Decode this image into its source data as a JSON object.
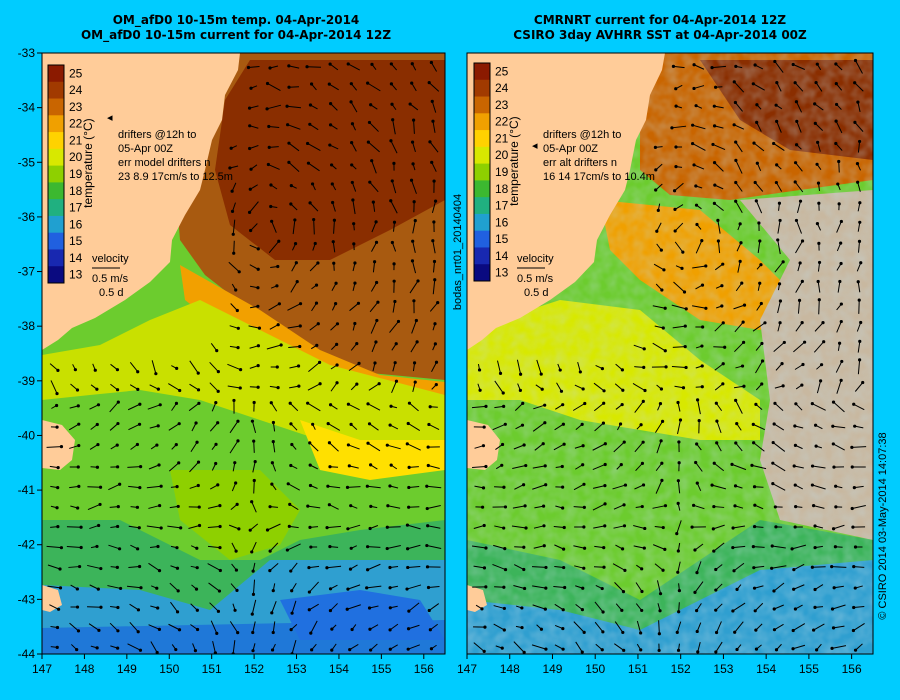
{
  "watermark": "bodas_nrt01_20140404",
  "copyright": "© CSIRO 2014   03-May-2014 14:07:38",
  "colorbar": {
    "label": "temperature (°C)",
    "ticks": [
      25,
      24,
      23,
      22,
      21,
      20,
      19,
      18,
      17,
      16,
      15,
      14,
      13
    ],
    "colors": [
      "#8b1a00",
      "#a13a00",
      "#c96500",
      "#f0a000",
      "#ffd200",
      "#d8e800",
      "#8ed000",
      "#3cb830",
      "#20b080",
      "#20a0d0",
      "#2060e0",
      "#1828b0",
      "#0a0a80"
    ]
  },
  "colors": {
    "background": "#00ccff",
    "land": "#ffcc99",
    "nodata": "#c8b8a0",
    "arrow": "#000000",
    "drifter": "#ff00ff"
  },
  "chart_data": [
    {
      "type": "heatmap",
      "title": "OM_afD0 10-15m temp. 04-Apr-2014",
      "subtitle": "OM_afD0 10-15m current for 04-Apr-2014 12Z",
      "xlim": [
        147,
        156.5
      ],
      "ylim": [
        -44,
        -33
      ],
      "xticks": [
        147,
        148,
        149,
        150,
        151,
        152,
        153,
        154,
        155,
        156
      ],
      "yticks": [
        -33,
        -34,
        -35,
        -36,
        -37,
        -38,
        -39,
        -40,
        -41,
        -42,
        -43,
        -44
      ],
      "legend": [
        "drifters @12h to",
        "05-Apr 00Z",
        "err model drifters n",
        "23    8.9      17cm/s  to 12.5m"
      ],
      "velocity_key": [
        "velocity",
        "0.5 m/s",
        "0.5 d"
      ],
      "colorbar_label": "temperature (°C)",
      "xlabel": "",
      "ylabel": ""
    },
    {
      "type": "heatmap",
      "title": "CMRNRT current for 04-Apr-2014 12Z",
      "subtitle": "CSIRO 3day AVHRR SST at 04-Apr-2014 00Z",
      "xlim": [
        147,
        156.5
      ],
      "ylim": [
        -44,
        -33
      ],
      "xticks": [
        147,
        148,
        149,
        150,
        151,
        152,
        153,
        154,
        155,
        156
      ],
      "yticks": [
        -33,
        -34,
        -35,
        -36,
        -37,
        -38,
        -39,
        -40,
        -41,
        -42,
        -43,
        -44
      ],
      "legend": [
        "drifters @12h to",
        "05-Apr 00Z",
        "err alt drifters n",
        "16 14 17cm/s  to 10.4m"
      ],
      "velocity_key": [
        "velocity",
        "0.5 m/s",
        "0.5 d"
      ],
      "colorbar_label": "temperature (°C)",
      "xlabel": "",
      "ylabel": ""
    }
  ]
}
